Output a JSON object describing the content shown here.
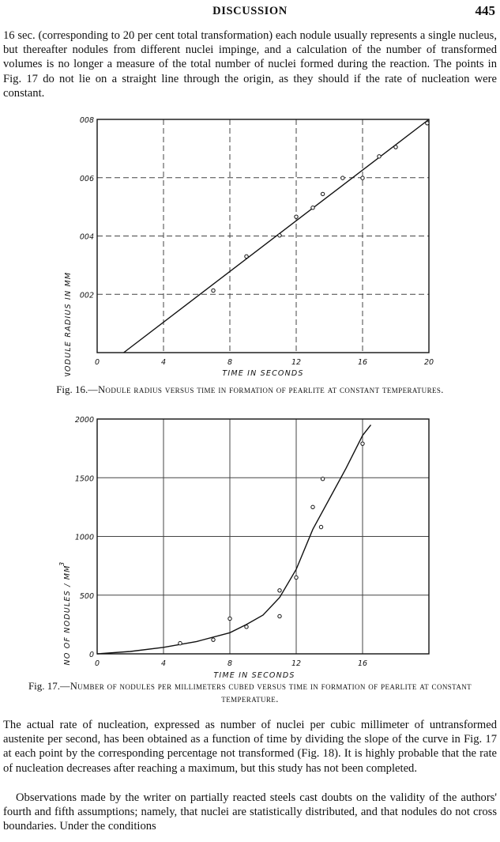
{
  "header": {
    "running_head": "DISCUSSION",
    "page_number": "445"
  },
  "body": {
    "para_1": "16 sec. (corresponding to 20 per cent total transformation) each nodule usually represents a single nucleus, but thereafter nodules from different nuclei impinge, and a calculation of the number of transformed volumes is no longer a measure of the total number of nuclei formed during the reaction. The points in Fig. 17 do not lie on a straight line through the origin, as they should if the rate of nucleation were constant.",
    "para_2": "The actual rate of nucleation, expressed as number of nuclei per cubic millimeter of untransformed austenite per second, has been obtained as a function of time by dividing the slope of the curve in Fig. 17 at each point by the corresponding percentage not transformed (Fig. 18). It is highly probable that the rate of nucleation decreases after reaching a maximum, but this study has not been completed.",
    "para_3": "Observations made by the writer on partially reacted steels cast doubts on the validity of the authors' fourth and fifth assumptions; namely, that nuclei are statistically distributed, and that nodules do not cross boundaries. Under the conditions"
  },
  "figures": {
    "fig16": {
      "label": "Fig. 16.",
      "caption": "—Nodule radius versus time in formation of pearlite at constant temperatures."
    },
    "fig17": {
      "label": "Fig. 17.",
      "caption": "—Number of nodules per millimeters cubed versus time in formation of pearlite at constant temperature."
    }
  },
  "chart_data": [
    {
      "type": "scatter",
      "figure": "Fig. 16",
      "xlabel": "TIME IN SECONDS",
      "ylabel": "NODULE RADIUS IN MM",
      "xlim": [
        0,
        20
      ],
      "ylim": [
        0.0,
        0.008
      ],
      "x_ticks": [
        0,
        4,
        8,
        12,
        16,
        20
      ],
      "x_tick_labels": [
        "0",
        "4",
        "8",
        "12",
        "16",
        "20"
      ],
      "y_ticks": [
        0.002,
        0.004,
        0.006,
        0.008
      ],
      "y_tick_labels": [
        "002",
        "004",
        "006",
        "008"
      ],
      "grid": "dashed",
      "points": [
        [
          7.0,
          0.00213
        ],
        [
          9.0,
          0.0033
        ],
        [
          11.0,
          0.00402
        ],
        [
          12.0,
          0.00466
        ],
        [
          13.0,
          0.00497
        ],
        [
          13.6,
          0.00544
        ],
        [
          14.8,
          0.00599
        ],
        [
          16.0,
          0.00599
        ],
        [
          17.0,
          0.00673
        ],
        [
          18.0,
          0.00705
        ],
        [
          19.9,
          0.00787
        ]
      ],
      "fit_line": [
        [
          1.6,
          0.0
        ],
        [
          20.0,
          0.008
        ]
      ]
    },
    {
      "type": "scatter",
      "figure": "Fig. 17",
      "xlabel": "TIME IN SECONDS",
      "ylabel": "NO OF NODULES / MM",
      "ylabel_superscript": "3",
      "xlim": [
        0,
        20
      ],
      "ylim": [
        0,
        2000
      ],
      "x_ticks": [
        0,
        4,
        8,
        12,
        16
      ],
      "x_tick_labels": [
        "0",
        "4",
        "8",
        "12",
        "16"
      ],
      "y_ticks": [
        0,
        500,
        1000,
        1500,
        2000
      ],
      "y_tick_labels": [
        "0",
        "500",
        "1000",
        "1500",
        "2000"
      ],
      "grid": "solid",
      "points": [
        [
          5.0,
          90
        ],
        [
          7.0,
          120
        ],
        [
          8.0,
          300
        ],
        [
          9.0,
          230
        ],
        [
          11.0,
          320
        ],
        [
          11.0,
          540
        ],
        [
          12.0,
          650
        ],
        [
          13.0,
          1250
        ],
        [
          13.5,
          1080
        ],
        [
          13.6,
          1490
        ],
        [
          16.0,
          1790
        ]
      ],
      "curve": [
        [
          0,
          0
        ],
        [
          2,
          20
        ],
        [
          4,
          55
        ],
        [
          6,
          105
        ],
        [
          8,
          180
        ],
        [
          9,
          250
        ],
        [
          10,
          330
        ],
        [
          11,
          480
        ],
        [
          12,
          720
        ],
        [
          13,
          1060
        ],
        [
          14,
          1320
        ],
        [
          15,
          1580
        ],
        [
          16,
          1860
        ],
        [
          16.5,
          1950
        ]
      ]
    }
  ]
}
